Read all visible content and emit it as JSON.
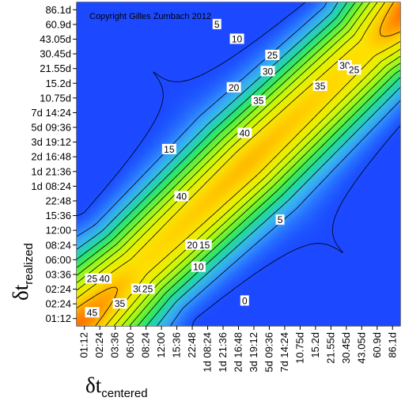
{
  "chart_data": {
    "type": "heatmap",
    "title": "",
    "copyright": "Copyright Gilles Zumbach 2012",
    "xlabel": {
      "symbol": "δt",
      "subscript": "centered"
    },
    "ylabel": {
      "symbol": "δt",
      "subscript": "realized"
    },
    "x_ticks": [
      "01:12",
      "02:24",
      "03:36",
      "06:00",
      "08:24",
      "12:00",
      "15:36",
      "22:48",
      "1d 08:24",
      "1d 21:36",
      "2d 16:48",
      "3d 19:12",
      "5d 09:36",
      "7d 14:24",
      "10.75d",
      "15.2d",
      "21.55d",
      "30.45d",
      "43.05d",
      "60.9d",
      "86.1d"
    ],
    "y_ticks": [
      "01:12",
      "02:24",
      "02:24",
      "03:36",
      "06:00",
      "08:24",
      "12:00",
      "15:36",
      "22:48",
      "1d 08:24",
      "1d 21:36",
      "2d 16:48",
      "3d 19:12",
      "5d 09:36",
      "7d 14:24",
      "10.75d",
      "15.2d",
      "21.55d",
      "30.45d",
      "43.05d",
      "60.9d",
      "86.1d"
    ],
    "contour_levels": [
      0,
      5,
      10,
      15,
      20,
      25,
      30,
      35,
      40,
      45
    ],
    "contour_labels": [
      {
        "text": "5",
        "x_idx": 8.6,
        "y_idx": 20.0
      },
      {
        "text": "10",
        "x_idx": 9.9,
        "y_idx": 19.0
      },
      {
        "text": "25",
        "x_idx": 12.2,
        "y_idx": 17.9
      },
      {
        "text": "30",
        "x_idx": 11.9,
        "y_idx": 16.8
      },
      {
        "text": "20",
        "x_idx": 9.7,
        "y_idx": 15.7
      },
      {
        "text": "35",
        "x_idx": 11.3,
        "y_idx": 14.8
      },
      {
        "text": "30",
        "x_idx": 16.9,
        "y_idx": 17.2
      },
      {
        "text": "25",
        "x_idx": 17.5,
        "y_idx": 16.9
      },
      {
        "text": "35",
        "x_idx": 15.3,
        "y_idx": 15.8
      },
      {
        "text": "15",
        "x_idx": 5.5,
        "y_idx": 11.5
      },
      {
        "text": "40",
        "x_idx": 10.4,
        "y_idx": 12.6
      },
      {
        "text": "40",
        "x_idx": 6.3,
        "y_idx": 8.3
      },
      {
        "text": "5",
        "x_idx": 12.7,
        "y_idx": 6.7
      },
      {
        "text": "20",
        "x_idx": 7.0,
        "y_idx": 5.0
      },
      {
        "text": "15",
        "x_idx": 7.8,
        "y_idx": 5.0
      },
      {
        "text": "10",
        "x_idx": 7.4,
        "y_idx": 3.5
      },
      {
        "text": "0",
        "x_idx": 10.4,
        "y_idx": 1.2
      },
      {
        "text": "25",
        "x_idx": 0.5,
        "y_idx": 2.7
      },
      {
        "text": "40",
        "x_idx": 1.3,
        "y_idx": 2.7
      },
      {
        "text": "35",
        "x_idx": 2.3,
        "y_idx": 1.0
      },
      {
        "text": "30",
        "x_idx": 3.5,
        "y_idx": 2.0
      },
      {
        "text": "25",
        "x_idx": 4.1,
        "y_idx": 2.0
      },
      {
        "text": "45",
        "x_idx": 0.5,
        "y_idx": 0.4
      }
    ],
    "colormap": [
      "#1a48ff",
      "#3fb8ff",
      "#00ec3a",
      "#d8ff00",
      "#ffe000",
      "#ff3a00"
    ],
    "colorbar": false,
    "grid": false
  }
}
